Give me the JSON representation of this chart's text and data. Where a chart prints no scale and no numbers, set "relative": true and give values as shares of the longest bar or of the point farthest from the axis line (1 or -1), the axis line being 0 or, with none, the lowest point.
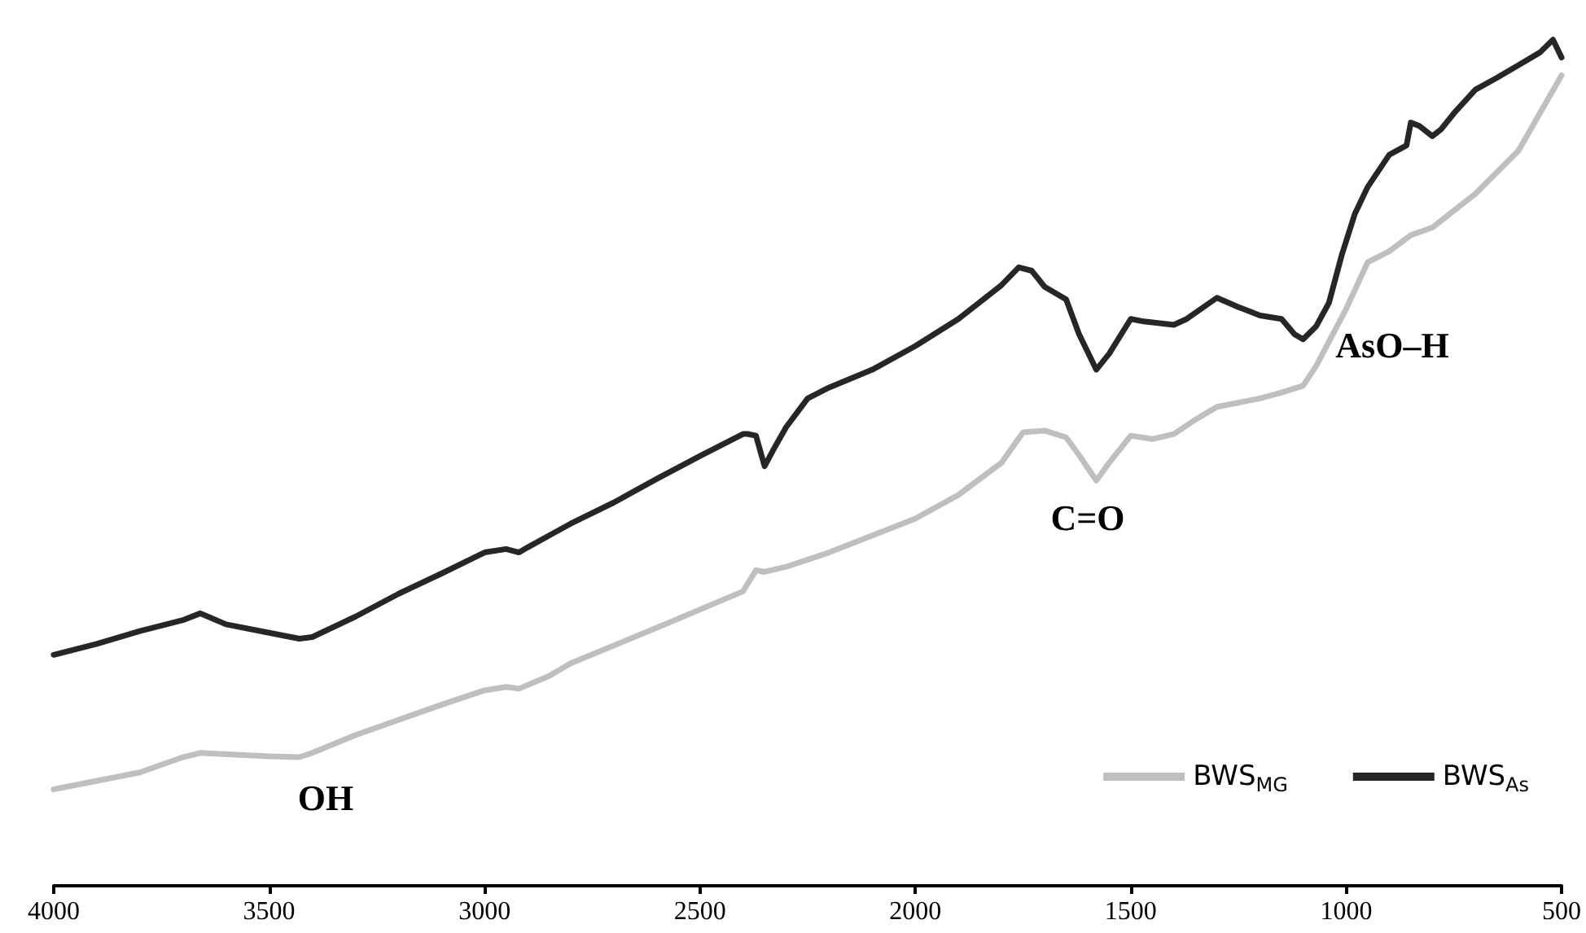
{
  "chart_data": {
    "type": "line",
    "relative": true,
    "xlim": [
      4000,
      500
    ],
    "xticks": [
      4000,
      3500,
      3000,
      2500,
      2000,
      1500,
      1000,
      500
    ],
    "legend": "bottom right",
    "grid": false,
    "marker": "none",
    "line_style": "solid",
    "annotations": [
      "OH",
      "C=O",
      "AsO–H"
    ],
    "series": [
      {
        "name": "BWS$_{MG}$",
        "color": "#bfbfbf",
        "x": [
          4000,
          3800,
          3700,
          3660,
          3500,
          3430,
          3400,
          3300,
          3100,
          3000,
          2950,
          2920,
          2850,
          2800,
          2600,
          2400,
          2370,
          2350,
          2300,
          2200,
          2000,
          1900,
          1800,
          1750,
          1700,
          1650,
          1620,
          1580,
          1550,
          1500,
          1450,
          1400,
          1350,
          1300,
          1200,
          1150,
          1100,
          1070,
          1000,
          950,
          900,
          850,
          800,
          700,
          600,
          500
        ],
        "values": [
          0.114,
          0.134,
          0.152,
          0.157,
          0.153,
          0.152,
          0.157,
          0.178,
          0.214,
          0.231,
          0.235,
          0.233,
          0.248,
          0.263,
          0.305,
          0.348,
          0.373,
          0.371,
          0.377,
          0.394,
          0.434,
          0.462,
          0.5,
          0.536,
          0.538,
          0.53,
          0.509,
          0.479,
          0.5,
          0.532,
          0.528,
          0.534,
          0.551,
          0.566,
          0.576,
          0.583,
          0.591,
          0.614,
          0.682,
          0.737,
          0.75,
          0.769,
          0.778,
          0.818,
          0.869,
          0.958
        ]
      },
      {
        "name": "BWS$_{As}$",
        "color": "#262626",
        "x": [
          4000,
          3900,
          3800,
          3700,
          3660,
          3600,
          3500,
          3430,
          3400,
          3300,
          3200,
          3100,
          3000,
          2950,
          2920,
          2900,
          2850,
          2800,
          2700,
          2600,
          2500,
          2400,
          2390,
          2370,
          2350,
          2330,
          2300,
          2250,
          2200,
          2100,
          2000,
          1900,
          1800,
          1760,
          1730,
          1700,
          1650,
          1620,
          1580,
          1550,
          1500,
          1470,
          1400,
          1370,
          1300,
          1250,
          1200,
          1150,
          1120,
          1100,
          1070,
          1040,
          1010,
          980,
          950,
          900,
          860,
          850,
          830,
          800,
          780,
          750,
          700,
          650,
          600,
          550,
          520,
          500
        ],
        "values": [
          0.273,
          0.286,
          0.301,
          0.314,
          0.322,
          0.309,
          0.299,
          0.292,
          0.294,
          0.318,
          0.345,
          0.369,
          0.394,
          0.398,
          0.394,
          0.4,
          0.414,
          0.428,
          0.453,
          0.481,
          0.508,
          0.534,
          0.534,
          0.532,
          0.496,
          0.515,
          0.542,
          0.576,
          0.589,
          0.61,
          0.638,
          0.67,
          0.71,
          0.731,
          0.727,
          0.708,
          0.693,
          0.652,
          0.61,
          0.629,
          0.67,
          0.667,
          0.663,
          0.67,
          0.695,
          0.684,
          0.674,
          0.67,
          0.652,
          0.646,
          0.661,
          0.689,
          0.746,
          0.794,
          0.826,
          0.864,
          0.875,
          0.902,
          0.898,
          0.886,
          0.894,
          0.913,
          0.941,
          0.955,
          0.97,
          0.985,
          1,
          0.979
        ]
      }
    ]
  }
}
